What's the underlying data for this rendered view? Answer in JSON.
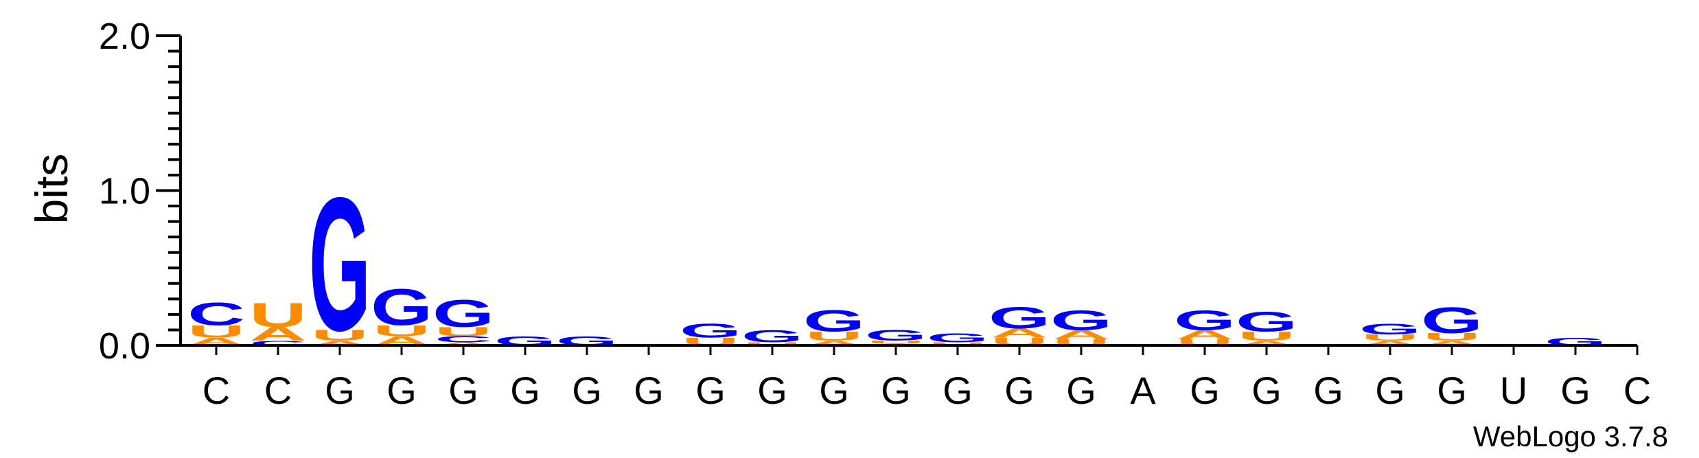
{
  "chart_data": {
    "type": "sequence-logo",
    "ylabel": "bits",
    "ylim": [
      0,
      2.0
    ],
    "yticks": [
      {
        "value": 0.0,
        "label": "0.0"
      },
      {
        "value": 1.0,
        "label": "1.0"
      },
      {
        "value": 2.0,
        "label": "2.0"
      }
    ],
    "colors": {
      "A": "#ff8c00",
      "U": "#ff8c00",
      "G": "#0000ff",
      "C": "#0000ff"
    },
    "positions": [
      {
        "label": "C",
        "stack": [
          {
            "base": "A",
            "height": 0.05
          },
          {
            "base": "U",
            "height": 0.08
          },
          {
            "base": "C",
            "height": 0.15
          }
        ]
      },
      {
        "label": "C",
        "stack": [
          {
            "base": "C",
            "height": 0.03
          },
          {
            "base": "A",
            "height": 0.09
          },
          {
            "base": "U",
            "height": 0.16
          }
        ]
      },
      {
        "label": "G",
        "stack": [
          {
            "base": "A",
            "height": 0.03
          },
          {
            "base": "U",
            "height": 0.07
          },
          {
            "base": "G",
            "height": 0.88
          }
        ]
      },
      {
        "label": "G",
        "stack": [
          {
            "base": "A",
            "height": 0.06
          },
          {
            "base": "U",
            "height": 0.07
          },
          {
            "base": "G",
            "height": 0.24
          }
        ]
      },
      {
        "label": "G",
        "stack": [
          {
            "base": "A",
            "height": 0.02
          },
          {
            "base": "C",
            "height": 0.04
          },
          {
            "base": "U",
            "height": 0.06
          },
          {
            "base": "G",
            "height": 0.18
          }
        ]
      },
      {
        "label": "G",
        "stack": [
          {
            "base": "G",
            "height": 0.06
          }
        ]
      },
      {
        "label": "G",
        "stack": [
          {
            "base": "G",
            "height": 0.06
          }
        ]
      },
      {
        "label": "G",
        "stack": []
      },
      {
        "label": "G",
        "stack": [
          {
            "base": "U",
            "height": 0.05
          },
          {
            "base": "G",
            "height": 0.09
          }
        ]
      },
      {
        "label": "G",
        "stack": [
          {
            "base": "U",
            "height": 0.02
          },
          {
            "base": "G",
            "height": 0.08
          }
        ]
      },
      {
        "label": "G",
        "stack": [
          {
            "base": "A",
            "height": 0.03
          },
          {
            "base": "U",
            "height": 0.06
          },
          {
            "base": "G",
            "height": 0.14
          }
        ]
      },
      {
        "label": "G",
        "stack": [
          {
            "base": "A",
            "height": 0.01
          },
          {
            "base": "U",
            "height": 0.02
          },
          {
            "base": "G",
            "height": 0.07
          }
        ]
      },
      {
        "label": "G",
        "stack": [
          {
            "base": "U",
            "height": 0.02
          },
          {
            "base": "G",
            "height": 0.06
          }
        ]
      },
      {
        "label": "G",
        "stack": [
          {
            "base": "U",
            "height": 0.05
          },
          {
            "base": "A",
            "height": 0.06
          },
          {
            "base": "G",
            "height": 0.14
          }
        ]
      },
      {
        "label": "G",
        "stack": [
          {
            "base": "U",
            "height": 0.04
          },
          {
            "base": "A",
            "height": 0.06
          },
          {
            "base": "G",
            "height": 0.13
          }
        ]
      },
      {
        "label": "A",
        "stack": []
      },
      {
        "label": "G",
        "stack": [
          {
            "base": "U",
            "height": 0.04
          },
          {
            "base": "A",
            "height": 0.06
          },
          {
            "base": "G",
            "height": 0.13
          }
        ]
      },
      {
        "label": "G",
        "stack": [
          {
            "base": "A",
            "height": 0.03
          },
          {
            "base": "U",
            "height": 0.06
          },
          {
            "base": "G",
            "height": 0.13
          }
        ]
      },
      {
        "label": "G",
        "stack": []
      },
      {
        "label": "G",
        "stack": [
          {
            "base": "A",
            "height": 0.03
          },
          {
            "base": "U",
            "height": 0.04
          },
          {
            "base": "G",
            "height": 0.07
          }
        ]
      },
      {
        "label": "G",
        "stack": [
          {
            "base": "A",
            "height": 0.03
          },
          {
            "base": "U",
            "height": 0.05
          },
          {
            "base": "G",
            "height": 0.17
          }
        ]
      },
      {
        "label": "U",
        "stack": []
      },
      {
        "label": "G",
        "stack": [
          {
            "base": "G",
            "height": 0.05
          }
        ]
      },
      {
        "label": "C",
        "stack": []
      }
    ]
  },
  "footer": "WebLogo 3.7.8"
}
